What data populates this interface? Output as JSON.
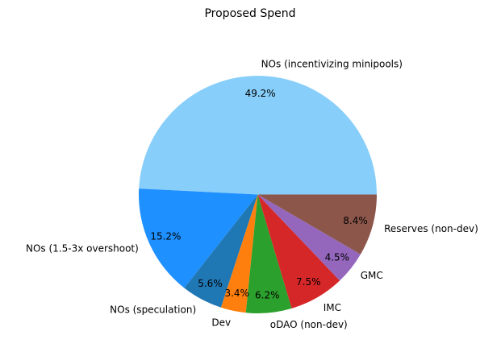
{
  "chart_data": {
    "type": "pie",
    "title": "Proposed Spend",
    "slices": [
      {
        "label": "NOs (incentivizing minipools)",
        "value": 49.2,
        "pct_label": "49.2%",
        "color": "#87CEFA"
      },
      {
        "label": "NOs (1.5-3x overshoot)",
        "value": 15.2,
        "pct_label": "15.2%",
        "color": "#1E90FF"
      },
      {
        "label": "NOs (speculation)",
        "value": 5.6,
        "pct_label": "5.6%",
        "color": "#1F77B4"
      },
      {
        "label": "Dev",
        "value": 3.4,
        "pct_label": "3.4%",
        "color": "#FF7F0E"
      },
      {
        "label": "oDAO (non-dev)",
        "value": 6.2,
        "pct_label": "6.2%",
        "color": "#2CA02C"
      },
      {
        "label": "IMC",
        "value": 7.5,
        "pct_label": "7.5%",
        "color": "#D62728"
      },
      {
        "label": "GMC",
        "value": 4.5,
        "pct_label": "4.5%",
        "color": "#9467BD"
      },
      {
        "label": "Reserves (non-dev)",
        "value": 8.4,
        "pct_label": "8.4%",
        "color": "#8C564B"
      }
    ],
    "start_angle": "3 o'clock",
    "direction": "counterclockwise",
    "legend": "none"
  }
}
